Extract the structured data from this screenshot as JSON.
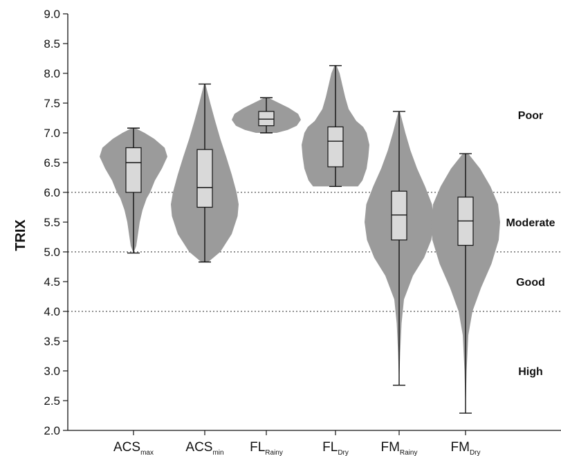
{
  "chart_data": {
    "type": "violin",
    "ylabel": "TRIX",
    "ylim": [
      2.0,
      9.0
    ],
    "yticks": [
      2.0,
      2.5,
      3.0,
      3.5,
      4.0,
      4.5,
      5.0,
      5.5,
      6.0,
      6.5,
      7.0,
      7.5,
      8.0,
      8.5,
      9.0
    ],
    "ytick_labels": [
      "2.0",
      "2.5",
      "3.0",
      "3.5",
      "4.0",
      "4.5",
      "5.0",
      "5.5",
      "6.0",
      "6.5",
      "7.0",
      "7.5",
      "8.0",
      "8.5",
      "9.0"
    ],
    "reference_lines": [
      4.0,
      5.0,
      6.0
    ],
    "zones": [
      {
        "label": "Poor",
        "y": 7.3
      },
      {
        "label": "Moderate",
        "y": 5.5
      },
      {
        "label": "Good",
        "y": 4.5
      },
      {
        "label": "High",
        "y": 3.0
      }
    ],
    "colors": {
      "violin": "#9b9b9b",
      "box": "#d9d9d9",
      "line": "#111111"
    },
    "categories": [
      {
        "base": "ACS",
        "sub": "max",
        "whisker_min": 4.98,
        "q1": 6.0,
        "median": 6.5,
        "q3": 6.75,
        "whisker_max": 7.08,
        "density": [
          [
            4.98,
            0.0
          ],
          [
            5.1,
            0.08
          ],
          [
            5.3,
            0.13
          ],
          [
            5.5,
            0.18
          ],
          [
            5.7,
            0.26
          ],
          [
            5.9,
            0.38
          ],
          [
            6.0,
            0.48
          ],
          [
            6.2,
            0.62
          ],
          [
            6.4,
            0.82
          ],
          [
            6.6,
            0.98
          ],
          [
            6.75,
            0.9
          ],
          [
            6.9,
            0.6
          ],
          [
            7.0,
            0.32
          ],
          [
            7.08,
            0.05
          ]
        ]
      },
      {
        "base": "ACS",
        "sub": "min",
        "whisker_min": 4.83,
        "q1": 5.75,
        "median": 6.08,
        "q3": 6.72,
        "whisker_max": 7.82,
        "density": [
          [
            4.83,
            0.1
          ],
          [
            5.0,
            0.45
          ],
          [
            5.3,
            0.78
          ],
          [
            5.6,
            0.95
          ],
          [
            5.8,
            0.98
          ],
          [
            6.0,
            0.92
          ],
          [
            6.3,
            0.78
          ],
          [
            6.6,
            0.62
          ],
          [
            6.9,
            0.45
          ],
          [
            7.2,
            0.3
          ],
          [
            7.5,
            0.16
          ],
          [
            7.82,
            0.02
          ]
        ]
      },
      {
        "base": "FL",
        "sub": "Rainy",
        "whisker_min": 7.0,
        "q1": 7.12,
        "median": 7.23,
        "q3": 7.36,
        "whisker_max": 7.59,
        "density": [
          [
            7.0,
            0.3
          ],
          [
            7.05,
            0.62
          ],
          [
            7.12,
            0.88
          ],
          [
            7.22,
            1.0
          ],
          [
            7.32,
            0.92
          ],
          [
            7.42,
            0.65
          ],
          [
            7.52,
            0.3
          ],
          [
            7.59,
            0.06
          ]
        ]
      },
      {
        "base": "FL",
        "sub": "Dry",
        "whisker_min": 6.1,
        "q1": 6.43,
        "median": 6.86,
        "q3": 7.1,
        "whisker_max": 8.13,
        "density": [
          [
            6.1,
            0.65
          ],
          [
            6.2,
            0.78
          ],
          [
            6.4,
            0.9
          ],
          [
            6.6,
            0.95
          ],
          [
            6.8,
            0.98
          ],
          [
            7.0,
            0.9
          ],
          [
            7.1,
            0.8
          ],
          [
            7.2,
            0.6
          ],
          [
            7.4,
            0.38
          ],
          [
            7.6,
            0.28
          ],
          [
            7.8,
            0.2
          ],
          [
            8.0,
            0.12
          ],
          [
            8.13,
            0.03
          ]
        ]
      },
      {
        "base": "FM",
        "sub": "Rainy",
        "whisker_min": 2.76,
        "q1": 5.2,
        "median": 5.62,
        "q3": 6.02,
        "whisker_max": 7.36,
        "density": [
          [
            2.76,
            0.0
          ],
          [
            3.3,
            0.03
          ],
          [
            3.8,
            0.07
          ],
          [
            4.2,
            0.14
          ],
          [
            4.6,
            0.4
          ],
          [
            4.9,
            0.72
          ],
          [
            5.2,
            0.93
          ],
          [
            5.5,
            1.0
          ],
          [
            5.8,
            0.95
          ],
          [
            6.1,
            0.75
          ],
          [
            6.4,
            0.52
          ],
          [
            6.7,
            0.33
          ],
          [
            7.0,
            0.18
          ],
          [
            7.36,
            0.02
          ]
        ]
      },
      {
        "base": "FM",
        "sub": "Dry",
        "whisker_min": 2.29,
        "q1": 5.11,
        "median": 5.52,
        "q3": 5.92,
        "whisker_max": 6.65,
        "density": [
          [
            2.29,
            0.0
          ],
          [
            3.0,
            0.03
          ],
          [
            3.6,
            0.08
          ],
          [
            4.0,
            0.2
          ],
          [
            4.4,
            0.45
          ],
          [
            4.8,
            0.75
          ],
          [
            5.2,
            0.96
          ],
          [
            5.5,
            1.0
          ],
          [
            5.8,
            0.94
          ],
          [
            6.1,
            0.72
          ],
          [
            6.4,
            0.42
          ],
          [
            6.65,
            0.08
          ]
        ]
      }
    ]
  }
}
